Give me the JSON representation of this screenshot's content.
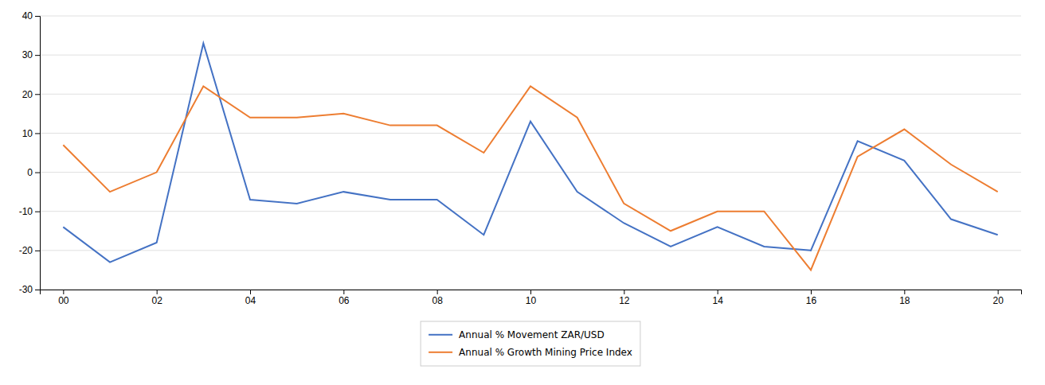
{
  "chart_data": {
    "type": "line",
    "x": [
      2000,
      2001,
      2002,
      2003,
      2004,
      2005,
      2006,
      2007,
      2008,
      2009,
      2010,
      2011,
      2012,
      2013,
      2014,
      2015,
      2016,
      2017,
      2018,
      2019,
      2020
    ],
    "series": [
      {
        "name": "Annual % Movement ZAR/USD",
        "color": "#4472c4",
        "values": [
          -14,
          -23,
          -18,
          33,
          -7,
          -8,
          -5,
          -7,
          -7,
          -16,
          13,
          -5,
          -13,
          -19,
          -14,
          -19,
          -20,
          8,
          3,
          -12,
          -16
        ]
      },
      {
        "name": "Annual % Growth Mining Price Index",
        "color": "#ed7d31",
        "values": [
          7,
          -5,
          0,
          22,
          14,
          14,
          15,
          12,
          12,
          5,
          22,
          14,
          -8,
          -15,
          -10,
          -10,
          -25,
          4,
          11,
          2,
          -5
        ]
      }
    ],
    "xlim": [
      1999.5,
      2020.5
    ],
    "xticks": [
      {
        "value": 2000,
        "label": "00"
      },
      {
        "value": 2002,
        "label": "02"
      },
      {
        "value": 2004,
        "label": "04"
      },
      {
        "value": 2006,
        "label": "06"
      },
      {
        "value": 2008,
        "label": "08"
      },
      {
        "value": 2010,
        "label": "10"
      },
      {
        "value": 2012,
        "label": "12"
      },
      {
        "value": 2014,
        "label": "14"
      },
      {
        "value": 2016,
        "label": "16"
      },
      {
        "value": 2018,
        "label": "18"
      },
      {
        "value": 2020,
        "label": "20"
      }
    ],
    "ylim": [
      -30,
      40
    ],
    "yticks": [
      -30,
      -20,
      -10,
      0,
      10,
      20,
      30,
      40
    ],
    "grid": true,
    "legend": "bottom"
  }
}
